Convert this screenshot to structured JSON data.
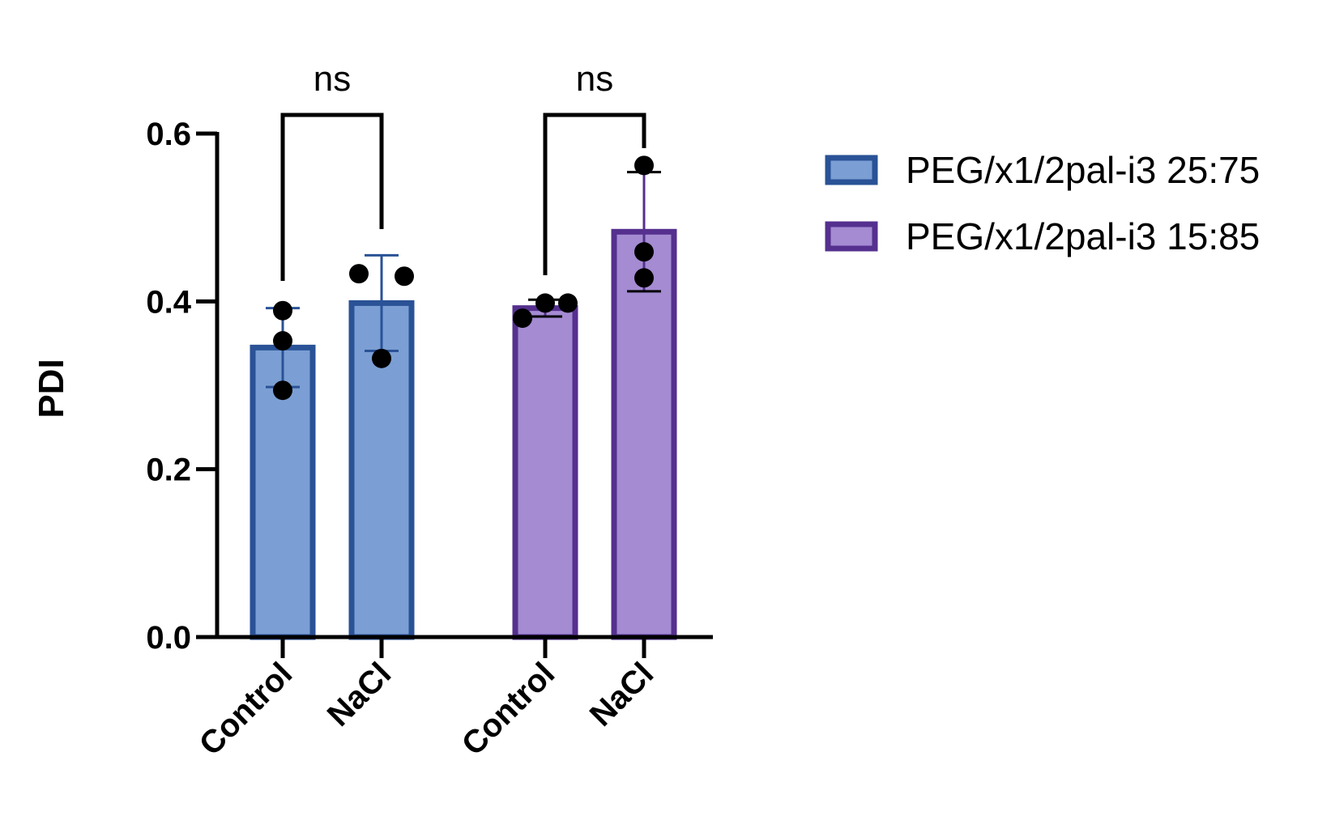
{
  "chart_data": {
    "type": "bar",
    "ylabel": "PDI",
    "xlabel": "",
    "ylim": [
      0,
      0.6
    ],
    "yticks": [
      "0.0",
      "0.2",
      "0.4",
      "0.6"
    ],
    "yticks_values": [
      0,
      0.2,
      0.4,
      0.6
    ],
    "grid": false,
    "legend_position": "top-right",
    "groups": [
      {
        "series_name": "PEG/x1/2pal-i3 25:75",
        "color_fill": "#7b9fd4",
        "color_edge": "#2a5296",
        "bars": [
          {
            "category": "Control",
            "mean": 0.345,
            "sd": 0.047,
            "points": [
              0.389,
              0.353,
              0.294
            ]
          },
          {
            "category": "NaCl",
            "mean": 0.398,
            "sd": 0.057,
            "points": [
              0.433,
              0.43,
              0.332
            ]
          }
        ],
        "significance": "ns"
      },
      {
        "series_name": "PEG/x1/2pal-i3 15:85",
        "color_fill": "#a48bd2",
        "color_edge": "#55308e",
        "bars": [
          {
            "category": "Control",
            "mean": 0.392,
            "sd": 0.01,
            "points": [
              0.38,
              0.398,
              0.398
            ]
          },
          {
            "category": "NaCl",
            "mean": 0.483,
            "sd": 0.071,
            "points": [
              0.562,
              0.459,
              0.428
            ]
          }
        ],
        "significance": "ns"
      }
    ],
    "legend": [
      {
        "label": "PEG/x1/2pal-i3 25:75",
        "fill": "#7b9fd4",
        "edge": "#2a5296"
      },
      {
        "label": "PEG/x1/2pal-i3 15:85",
        "fill": "#a48bd2",
        "edge": "#55308e"
      }
    ]
  }
}
